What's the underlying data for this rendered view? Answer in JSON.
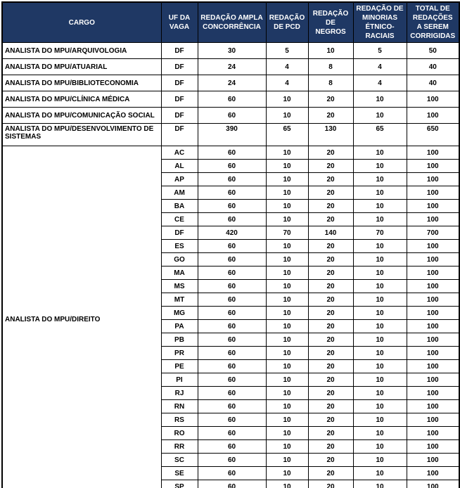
{
  "colors": {
    "header_bg": "#1F3864",
    "header_text": "#FFFFFF",
    "body_text": "#000000",
    "border": "#000000"
  },
  "table": {
    "columns": [
      "CARGO",
      "UF DA\nVAGA",
      "REDAÇÃO AMPLA\nCONCORRÊNCIA",
      "REDAÇÃO\nDE PCD",
      "REDAÇÃO\nDE\nNEGROS",
      "REDAÇÃO DE\nMINORIAS\nÉTNICO-\nRACIAIS",
      "TOTAL DE\nREDAÇÕES\nA SEREM\nCORRIGIDAS"
    ],
    "groups": [
      {
        "cargo": "ANALISTA DO MPU/ARQUIVOLOGIA",
        "rows": [
          {
            "uf": "DF",
            "values": [
              "30",
              "5",
              "10",
              "5",
              "50"
            ]
          }
        ]
      },
      {
        "cargo": "ANALISTA DO MPU/ATUARIAL",
        "rows": [
          {
            "uf": "DF",
            "values": [
              "24",
              "4",
              "8",
              "4",
              "40"
            ]
          }
        ]
      },
      {
        "cargo": "ANALISTA DO MPU/BIBLIOTECONOMIA",
        "rows": [
          {
            "uf": "DF",
            "values": [
              "24",
              "4",
              "8",
              "4",
              "40"
            ]
          }
        ]
      },
      {
        "cargo": "ANALISTA DO MPU/CLÍNICA MÉDICA",
        "rows": [
          {
            "uf": "DF",
            "values": [
              "60",
              "10",
              "20",
              "10",
              "100"
            ]
          }
        ]
      },
      {
        "cargo": "ANALISTA DO MPU/COMUNICAÇÃO SOCIAL",
        "rows": [
          {
            "uf": "DF",
            "values": [
              "60",
              "10",
              "20",
              "10",
              "100"
            ]
          }
        ]
      },
      {
        "cargo": "ANALISTA DO MPU/DESENVOLVIMENTO DE\nSISTEMAS",
        "rows": [
          {
            "uf": "DF",
            "values": [
              "390",
              "65",
              "130",
              "65",
              "650"
            ]
          }
        ]
      },
      {
        "cargo": "ANALISTA DO MPU/DIREITO",
        "rows": [
          {
            "uf": "AC",
            "values": [
              "60",
              "10",
              "20",
              "10",
              "100"
            ]
          },
          {
            "uf": "AL",
            "values": [
              "60",
              "10",
              "20",
              "10",
              "100"
            ]
          },
          {
            "uf": "AP",
            "values": [
              "60",
              "10",
              "20",
              "10",
              "100"
            ]
          },
          {
            "uf": "AM",
            "values": [
              "60",
              "10",
              "20",
              "10",
              "100"
            ]
          },
          {
            "uf": "BA",
            "values": [
              "60",
              "10",
              "20",
              "10",
              "100"
            ]
          },
          {
            "uf": "CE",
            "values": [
              "60",
              "10",
              "20",
              "10",
              "100"
            ]
          },
          {
            "uf": "DF",
            "values": [
              "420",
              "70",
              "140",
              "70",
              "700"
            ]
          },
          {
            "uf": "ES",
            "values": [
              "60",
              "10",
              "20",
              "10",
              "100"
            ]
          },
          {
            "uf": "GO",
            "values": [
              "60",
              "10",
              "20",
              "10",
              "100"
            ]
          },
          {
            "uf": "MA",
            "values": [
              "60",
              "10",
              "20",
              "10",
              "100"
            ]
          },
          {
            "uf": "MS",
            "values": [
              "60",
              "10",
              "20",
              "10",
              "100"
            ]
          },
          {
            "uf": "MT",
            "values": [
              "60",
              "10",
              "20",
              "10",
              "100"
            ]
          },
          {
            "uf": "MG",
            "values": [
              "60",
              "10",
              "20",
              "10",
              "100"
            ]
          },
          {
            "uf": "PA",
            "values": [
              "60",
              "10",
              "20",
              "10",
              "100"
            ]
          },
          {
            "uf": "PB",
            "values": [
              "60",
              "10",
              "20",
              "10",
              "100"
            ]
          },
          {
            "uf": "PR",
            "values": [
              "60",
              "10",
              "20",
              "10",
              "100"
            ]
          },
          {
            "uf": "PE",
            "values": [
              "60",
              "10",
              "20",
              "10",
              "100"
            ]
          },
          {
            "uf": "PI",
            "values": [
              "60",
              "10",
              "20",
              "10",
              "100"
            ]
          },
          {
            "uf": "RJ",
            "values": [
              "60",
              "10",
              "20",
              "10",
              "100"
            ]
          },
          {
            "uf": "RN",
            "values": [
              "60",
              "10",
              "20",
              "10",
              "100"
            ]
          },
          {
            "uf": "RS",
            "values": [
              "60",
              "10",
              "20",
              "10",
              "100"
            ]
          },
          {
            "uf": "RO",
            "values": [
              "60",
              "10",
              "20",
              "10",
              "100"
            ]
          },
          {
            "uf": "RR",
            "values": [
              "60",
              "10",
              "20",
              "10",
              "100"
            ]
          },
          {
            "uf": "SC",
            "values": [
              "60",
              "10",
              "20",
              "10",
              "100"
            ]
          },
          {
            "uf": "SE",
            "values": [
              "60",
              "10",
              "20",
              "10",
              "100"
            ]
          },
          {
            "uf": "SP",
            "values": [
              "60",
              "10",
              "20",
              "10",
              "100"
            ]
          }
        ]
      }
    ]
  }
}
